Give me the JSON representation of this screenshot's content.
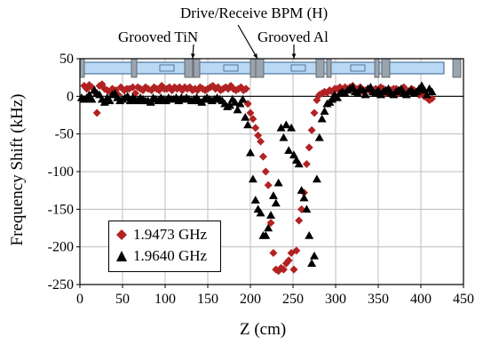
{
  "chart_data": {
    "type": "scatter",
    "xlabel": "Z (cm)",
    "ylabel": "Frequency Shift (kHz)",
    "xlim": [
      0,
      450
    ],
    "ylim": [
      -250,
      50
    ],
    "xticks": [
      0,
      50,
      100,
      150,
      200,
      250,
      300,
      350,
      400,
      450
    ],
    "yticks": [
      50,
      0,
      -50,
      -100,
      -150,
      -200,
      -250
    ],
    "grid": true,
    "legend_position": "bottom-left",
    "annotations": [
      {
        "text": "Drive/Receive BPM (H)",
        "points_to_z": [
          210,
          250
        ]
      },
      {
        "text": "Grooved TiN",
        "points_to_z": 130
      },
      {
        "text": "Grooved Al",
        "points_to_z": 250
      }
    ],
    "series": [
      {
        "name": "1.9473 GHz",
        "color": "#b22222",
        "marker": "diamond",
        "points": [
          [
            5,
            14
          ],
          [
            8,
            10
          ],
          [
            11,
            15
          ],
          [
            14,
            12
          ],
          [
            17,
            6
          ],
          [
            20,
            -22
          ],
          [
            23,
            14
          ],
          [
            26,
            16
          ],
          [
            29,
            10
          ],
          [
            32,
            8
          ],
          [
            35,
            6
          ],
          [
            38,
            10
          ],
          [
            42,
            8
          ],
          [
            45,
            2
          ],
          [
            48,
            12
          ],
          [
            52,
            8
          ],
          [
            55,
            10
          ],
          [
            58,
            10
          ],
          [
            62,
            12
          ],
          [
            65,
            4
          ],
          [
            68,
            12
          ],
          [
            71,
            10
          ],
          [
            74,
            8
          ],
          [
            77,
            12
          ],
          [
            80,
            10
          ],
          [
            84,
            8
          ],
          [
            87,
            12
          ],
          [
            90,
            10
          ],
          [
            93,
            8
          ],
          [
            96,
            14
          ],
          [
            99,
            10
          ],
          [
            102,
            10
          ],
          [
            105,
            12
          ],
          [
            108,
            8
          ],
          [
            111,
            12
          ],
          [
            114,
            10
          ],
          [
            117,
            12
          ],
          [
            120,
            8
          ],
          [
            123,
            12
          ],
          [
            126,
            10
          ],
          [
            129,
            12
          ],
          [
            132,
            8
          ],
          [
            135,
            10
          ],
          [
            138,
            8
          ],
          [
            141,
            12
          ],
          [
            144,
            10
          ],
          [
            147,
            8
          ],
          [
            150,
            10
          ],
          [
            153,
            12
          ],
          [
            156,
            14
          ],
          [
            159,
            10
          ],
          [
            162,
            12
          ],
          [
            165,
            8
          ],
          [
            168,
            10
          ],
          [
            171,
            12
          ],
          [
            174,
            10
          ],
          [
            177,
            14
          ],
          [
            180,
            10
          ],
          [
            183,
            8
          ],
          [
            186,
            10
          ],
          [
            189,
            12
          ],
          [
            192,
            8
          ],
          [
            195,
            10
          ],
          [
            197,
            -10
          ],
          [
            200,
            -22
          ],
          [
            203,
            -30
          ],
          [
            206,
            -42
          ],
          [
            209,
            -52
          ],
          [
            212,
            -60
          ],
          [
            215,
            -80
          ],
          [
            218,
            -100
          ],
          [
            221,
            -118
          ],
          [
            224,
            -168
          ],
          [
            227,
            -208
          ],
          [
            230,
            -230
          ],
          [
            233,
            -232
          ],
          [
            236,
            -228
          ],
          [
            239,
            -230
          ],
          [
            242,
            -222
          ],
          [
            245,
            -218
          ],
          [
            248,
            -208
          ],
          [
            251,
            -230
          ],
          [
            254,
            -205
          ],
          [
            257,
            -165
          ],
          [
            260,
            -150
          ],
          [
            263,
            -128
          ],
          [
            266,
            -90
          ],
          [
            269,
            -68
          ],
          [
            272,
            -45
          ],
          [
            275,
            -22
          ],
          [
            278,
            -5
          ],
          [
            281,
            2
          ],
          [
            284,
            4
          ],
          [
            287,
            6
          ],
          [
            290,
            5
          ],
          [
            293,
            8
          ],
          [
            296,
            6
          ],
          [
            299,
            10
          ],
          [
            302,
            10
          ],
          [
            305,
            12
          ],
          [
            308,
            8
          ],
          [
            311,
            12
          ],
          [
            314,
            10
          ],
          [
            317,
            12
          ],
          [
            320,
            14
          ],
          [
            323,
            8
          ],
          [
            326,
            10
          ],
          [
            329,
            12
          ],
          [
            332,
            6
          ],
          [
            335,
            8
          ],
          [
            338,
            10
          ],
          [
            341,
            6
          ],
          [
            344,
            8
          ],
          [
            347,
            10
          ],
          [
            350,
            8
          ],
          [
            353,
            12
          ],
          [
            356,
            10
          ],
          [
            359,
            4
          ],
          [
            362,
            6
          ],
          [
            365,
            8
          ],
          [
            368,
            10
          ],
          [
            371,
            10
          ],
          [
            374,
            4
          ],
          [
            377,
            6
          ],
          [
            380,
            12
          ],
          [
            383,
            8
          ],
          [
            386,
            6
          ],
          [
            389,
            10
          ],
          [
            392,
            8
          ],
          [
            395,
            4
          ],
          [
            398,
            2
          ],
          [
            401,
            6
          ],
          [
            404,
            0
          ],
          [
            407,
            -2
          ],
          [
            410,
            -5
          ],
          [
            413,
            -3
          ]
        ]
      },
      {
        "name": "1.9640 GHz",
        "color": "#000000",
        "marker": "triangle",
        "points": [
          [
            2,
            -2
          ],
          [
            5,
            -4
          ],
          [
            8,
            -2
          ],
          [
            11,
            2
          ],
          [
            14,
            -4
          ],
          [
            17,
            8
          ],
          [
            20,
            4
          ],
          [
            23,
            2
          ],
          [
            26,
            -4
          ],
          [
            29,
            -8
          ],
          [
            32,
            -2
          ],
          [
            35,
            -6
          ],
          [
            38,
            2
          ],
          [
            41,
            4
          ],
          [
            44,
            -2
          ],
          [
            47,
            -6
          ],
          [
            50,
            -4
          ],
          [
            53,
            -2
          ],
          [
            56,
            0
          ],
          [
            59,
            -6
          ],
          [
            62,
            -2
          ],
          [
            65,
            -4
          ],
          [
            68,
            -6
          ],
          [
            71,
            -2
          ],
          [
            74,
            -4
          ],
          [
            77,
            -6
          ],
          [
            80,
            -6
          ],
          [
            83,
            -8
          ],
          [
            86,
            -2
          ],
          [
            89,
            -4
          ],
          [
            92,
            -6
          ],
          [
            95,
            -2
          ],
          [
            98,
            -4
          ],
          [
            101,
            -6
          ],
          [
            104,
            -2
          ],
          [
            107,
            -4
          ],
          [
            110,
            -4
          ],
          [
            113,
            -2
          ],
          [
            116,
            -6
          ],
          [
            119,
            -2
          ],
          [
            122,
            -4
          ],
          [
            125,
            -2
          ],
          [
            128,
            -4
          ],
          [
            131,
            -6
          ],
          [
            134,
            -4
          ],
          [
            137,
            -2
          ],
          [
            140,
            -6
          ],
          [
            143,
            -8
          ],
          [
            146,
            -4
          ],
          [
            149,
            -2
          ],
          [
            152,
            -4
          ],
          [
            155,
            -6
          ],
          [
            158,
            -4
          ],
          [
            161,
            -2
          ],
          [
            164,
            -4
          ],
          [
            167,
            -6
          ],
          [
            170,
            -10
          ],
          [
            173,
            -14
          ],
          [
            176,
            -12
          ],
          [
            179,
            -4
          ],
          [
            182,
            -8
          ],
          [
            185,
            -18
          ],
          [
            188,
            -10
          ],
          [
            191,
            -4
          ],
          [
            194,
            -28
          ],
          [
            197,
            -38
          ],
          [
            200,
            -75
          ],
          [
            203,
            -110
          ],
          [
            206,
            -138
          ],
          [
            209,
            -150
          ],
          [
            212,
            -155
          ],
          [
            215,
            -185
          ],
          [
            218,
            -185
          ],
          [
            221,
            -175
          ],
          [
            224,
            -158
          ],
          [
            227,
            -132
          ],
          [
            230,
            -142
          ],
          [
            233,
            -115
          ],
          [
            236,
            -42
          ],
          [
            239,
            -55
          ],
          [
            242,
            -38
          ],
          [
            245,
            -72
          ],
          [
            248,
            -42
          ],
          [
            251,
            -78
          ],
          [
            254,
            -85
          ],
          [
            257,
            -90
          ],
          [
            260,
            -125
          ],
          [
            263,
            -135
          ],
          [
            266,
            -150
          ],
          [
            269,
            -185
          ],
          [
            272,
            -222
          ],
          [
            275,
            -212
          ],
          [
            278,
            -110
          ],
          [
            281,
            -55
          ],
          [
            284,
            -30
          ],
          [
            287,
            -20
          ],
          [
            290,
            -10
          ],
          [
            293,
            -8
          ],
          [
            296,
            -4
          ],
          [
            299,
            2
          ],
          [
            302,
            -2
          ],
          [
            305,
            4
          ],
          [
            308,
            6
          ],
          [
            311,
            4
          ],
          [
            314,
            8
          ],
          [
            317,
            10
          ],
          [
            320,
            12
          ],
          [
            323,
            6
          ],
          [
            326,
            4
          ],
          [
            329,
            10
          ],
          [
            332,
            8
          ],
          [
            335,
            2
          ],
          [
            338,
            10
          ],
          [
            341,
            12
          ],
          [
            344,
            6
          ],
          [
            347,
            4
          ],
          [
            350,
            8
          ],
          [
            353,
            2
          ],
          [
            356,
            6
          ],
          [
            359,
            8
          ],
          [
            362,
            10
          ],
          [
            365,
            4
          ],
          [
            368,
            2
          ],
          [
            371,
            6
          ],
          [
            374,
            8
          ],
          [
            377,
            10
          ],
          [
            380,
            4
          ],
          [
            383,
            2
          ],
          [
            386,
            6
          ],
          [
            389,
            8
          ],
          [
            392,
            4
          ],
          [
            395,
            6
          ],
          [
            398,
            10
          ],
          [
            401,
            14
          ],
          [
            404,
            8
          ],
          [
            407,
            2
          ],
          [
            410,
            10
          ],
          [
            413,
            6
          ]
        ]
      }
    ]
  },
  "beamline": {
    "pipe_color": "#b8d8f4",
    "flange_color": "#9aa4ae"
  }
}
